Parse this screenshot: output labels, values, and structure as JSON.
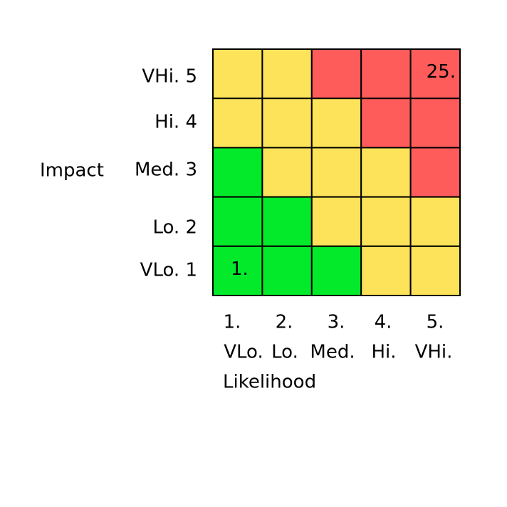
{
  "axes": {
    "y_title": "Impact",
    "x_title": "Likelihood"
  },
  "rows": [
    "VHi. 5",
    "Hi. 4",
    "Med. 3",
    "Lo. 2",
    "VLo. 1"
  ],
  "columns": [
    {
      "number": "1.",
      "name": "VLo."
    },
    {
      "number": "2.",
      "name": "Lo."
    },
    {
      "number": "3.",
      "name": "Med."
    },
    {
      "number": "4.",
      "name": "Hi."
    },
    {
      "number": "5.",
      "name": "VHi."
    }
  ],
  "cells": [
    [
      {
        "color": "#fde35a"
      },
      {
        "color": "#fde35a"
      },
      {
        "color": "#fe5b5b"
      },
      {
        "color": "#fe5b5b"
      },
      {
        "color": "#fe5b5b",
        "label": "25."
      }
    ],
    [
      {
        "color": "#fde35a"
      },
      {
        "color": "#fde35a"
      },
      {
        "color": "#fde35a"
      },
      {
        "color": "#fe5b5b"
      },
      {
        "color": "#fe5b5b"
      }
    ],
    [
      {
        "color": "#03ea2a"
      },
      {
        "color": "#fde35a"
      },
      {
        "color": "#fde35a"
      },
      {
        "color": "#fde35a"
      },
      {
        "color": "#fe5b5b"
      }
    ],
    [
      {
        "color": "#03ea2a"
      },
      {
        "color": "#03ea2a"
      },
      {
        "color": "#fde35a"
      },
      {
        "color": "#fde35a"
      },
      {
        "color": "#fde35a"
      }
    ],
    [
      {
        "color": "#03ea2a",
        "label": "1."
      },
      {
        "color": "#03ea2a"
      },
      {
        "color": "#03ea2a"
      },
      {
        "color": "#fde35a"
      },
      {
        "color": "#fde35a"
      }
    ]
  ]
}
